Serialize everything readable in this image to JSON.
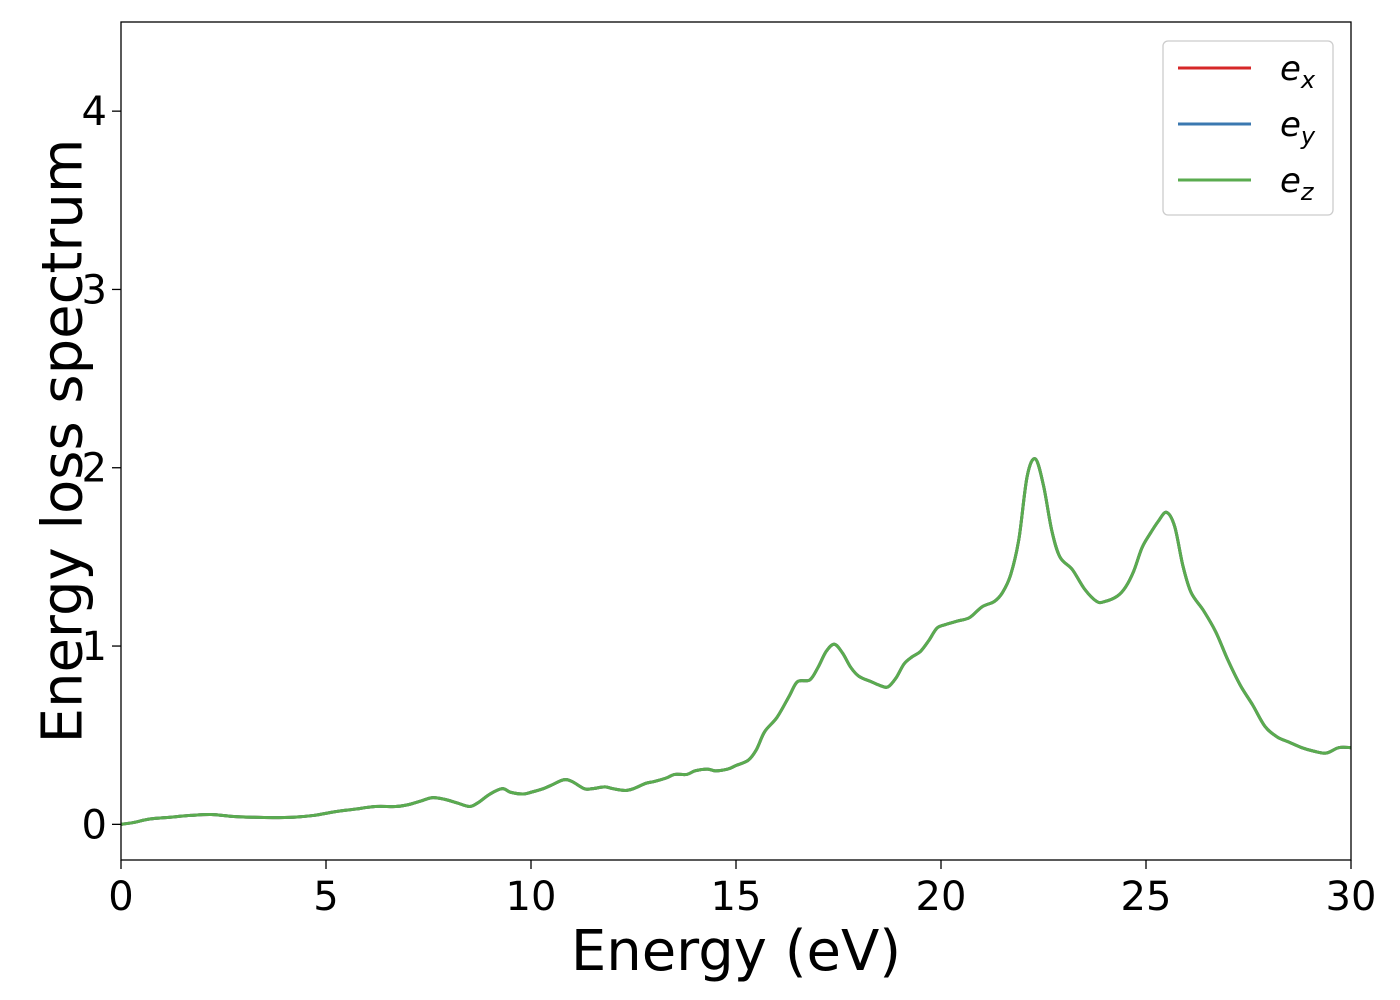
{
  "chart_data": {
    "type": "line",
    "title": "",
    "xlabel": "Energy (eV)",
    "ylabel": "Energy loss spectrum",
    "xlim": [
      0,
      30
    ],
    "ylim": [
      -0.2,
      4.5
    ],
    "xticks": [
      0,
      5,
      10,
      15,
      20,
      25,
      30
    ],
    "yticks": [
      0,
      1,
      2,
      3,
      4
    ],
    "grid": false,
    "legend_position": "top-right",
    "legend": [
      {
        "base": "e",
        "sub": "x"
      },
      {
        "base": "e",
        "sub": "y"
      },
      {
        "base": "e",
        "sub": "z"
      }
    ],
    "x": [
      0,
      0.3,
      0.7,
      1.2,
      1.7,
      2.2,
      2.7,
      3.2,
      3.7,
      4.2,
      4.7,
      5.2,
      5.7,
      6.2,
      6.7,
      7.0,
      7.3,
      7.6,
      7.9,
      8.2,
      8.5,
      8.7,
      9.0,
      9.3,
      9.5,
      9.8,
      10.0,
      10.3,
      10.5,
      10.8,
      11.0,
      11.3,
      11.5,
      11.8,
      12.0,
      12.3,
      12.5,
      12.8,
      13.0,
      13.3,
      13.5,
      13.8,
      14.0,
      14.3,
      14.5,
      14.8,
      15.0,
      15.3,
      15.5,
      15.7,
      16.0,
      16.3,
      16.5,
      16.8,
      17.0,
      17.2,
      17.4,
      17.6,
      17.8,
      18.0,
      18.3,
      18.5,
      18.7,
      18.9,
      19.1,
      19.3,
      19.5,
      19.7,
      19.9,
      20.1,
      20.4,
      20.7,
      21.0,
      21.3,
      21.5,
      21.7,
      21.9,
      22.1,
      22.3,
      22.5,
      22.7,
      22.9,
      23.2,
      23.5,
      23.8,
      24.0,
      24.3,
      24.5,
      24.7,
      24.9,
      25.1,
      25.3,
      25.5,
      25.7,
      25.9,
      26.1,
      26.4,
      26.7,
      27.0,
      27.3,
      27.6,
      27.9,
      28.2,
      28.5,
      28.8,
      29.1,
      29.4,
      29.7,
      30.0
    ],
    "series": [
      {
        "name": "e_x",
        "color": "#d62728",
        "y": [
          0.0,
          0.01,
          0.03,
          0.04,
          0.05,
          0.055,
          0.045,
          0.04,
          0.038,
          0.04,
          0.05,
          0.07,
          0.085,
          0.1,
          0.1,
          0.11,
          0.13,
          0.15,
          0.14,
          0.12,
          0.1,
          0.12,
          0.17,
          0.2,
          0.18,
          0.17,
          0.18,
          0.2,
          0.22,
          0.25,
          0.24,
          0.2,
          0.2,
          0.21,
          0.2,
          0.19,
          0.2,
          0.23,
          0.24,
          0.26,
          0.28,
          0.28,
          0.3,
          0.31,
          0.3,
          0.31,
          0.33,
          0.36,
          0.42,
          0.52,
          0.6,
          0.72,
          0.8,
          0.81,
          0.88,
          0.97,
          1.01,
          0.96,
          0.88,
          0.83,
          0.8,
          0.78,
          0.77,
          0.82,
          0.9,
          0.94,
          0.97,
          1.03,
          1.1,
          1.12,
          1.14,
          1.16,
          1.22,
          1.25,
          1.3,
          1.4,
          1.6,
          1.95,
          2.05,
          1.9,
          1.65,
          1.5,
          1.43,
          1.32,
          1.25,
          1.25,
          1.28,
          1.33,
          1.42,
          1.55,
          1.63,
          1.7,
          1.75,
          1.67,
          1.45,
          1.3,
          1.2,
          1.08,
          0.92,
          0.78,
          0.67,
          0.55,
          0.49,
          0.46,
          0.43,
          0.41,
          0.4,
          0.43,
          0.43
        ]
      },
      {
        "name": "e_y",
        "color": "#3b78b0",
        "y": [
          0.0,
          0.01,
          0.03,
          0.04,
          0.05,
          0.055,
          0.045,
          0.04,
          0.038,
          0.04,
          0.05,
          0.07,
          0.085,
          0.1,
          0.1,
          0.11,
          0.13,
          0.15,
          0.14,
          0.12,
          0.1,
          0.12,
          0.17,
          0.2,
          0.18,
          0.17,
          0.18,
          0.2,
          0.22,
          0.25,
          0.24,
          0.2,
          0.2,
          0.21,
          0.2,
          0.19,
          0.2,
          0.23,
          0.24,
          0.26,
          0.28,
          0.28,
          0.3,
          0.31,
          0.3,
          0.31,
          0.33,
          0.36,
          0.42,
          0.52,
          0.6,
          0.72,
          0.8,
          0.81,
          0.88,
          0.97,
          1.01,
          0.96,
          0.88,
          0.83,
          0.8,
          0.78,
          0.77,
          0.82,
          0.9,
          0.94,
          0.97,
          1.03,
          1.1,
          1.12,
          1.14,
          1.16,
          1.22,
          1.25,
          1.3,
          1.4,
          1.6,
          1.95,
          2.05,
          1.9,
          1.65,
          1.5,
          1.43,
          1.32,
          1.25,
          1.25,
          1.28,
          1.33,
          1.42,
          1.55,
          1.63,
          1.7,
          1.75,
          1.67,
          1.45,
          1.3,
          1.2,
          1.08,
          0.92,
          0.78,
          0.67,
          0.55,
          0.49,
          0.46,
          0.43,
          0.41,
          0.4,
          0.43,
          0.43
        ]
      },
      {
        "name": "e_z",
        "color": "#5aab4f",
        "y": [
          0.0,
          0.01,
          0.03,
          0.04,
          0.05,
          0.055,
          0.045,
          0.04,
          0.038,
          0.04,
          0.05,
          0.07,
          0.085,
          0.1,
          0.1,
          0.11,
          0.13,
          0.15,
          0.14,
          0.12,
          0.1,
          0.12,
          0.17,
          0.2,
          0.18,
          0.17,
          0.18,
          0.2,
          0.22,
          0.25,
          0.24,
          0.2,
          0.2,
          0.21,
          0.2,
          0.19,
          0.2,
          0.23,
          0.24,
          0.26,
          0.28,
          0.28,
          0.3,
          0.31,
          0.3,
          0.31,
          0.33,
          0.36,
          0.42,
          0.52,
          0.6,
          0.72,
          0.8,
          0.81,
          0.88,
          0.97,
          1.01,
          0.96,
          0.88,
          0.83,
          0.8,
          0.78,
          0.77,
          0.82,
          0.9,
          0.94,
          0.97,
          1.03,
          1.1,
          1.12,
          1.14,
          1.16,
          1.22,
          1.25,
          1.3,
          1.4,
          1.6,
          1.95,
          2.05,
          1.9,
          1.65,
          1.5,
          1.43,
          1.32,
          1.25,
          1.25,
          1.28,
          1.33,
          1.42,
          1.55,
          1.63,
          1.7,
          1.75,
          1.67,
          1.45,
          1.3,
          1.2,
          1.08,
          0.92,
          0.78,
          0.67,
          0.55,
          0.49,
          0.46,
          0.43,
          0.41,
          0.4,
          0.43,
          0.43
        ]
      }
    ]
  }
}
